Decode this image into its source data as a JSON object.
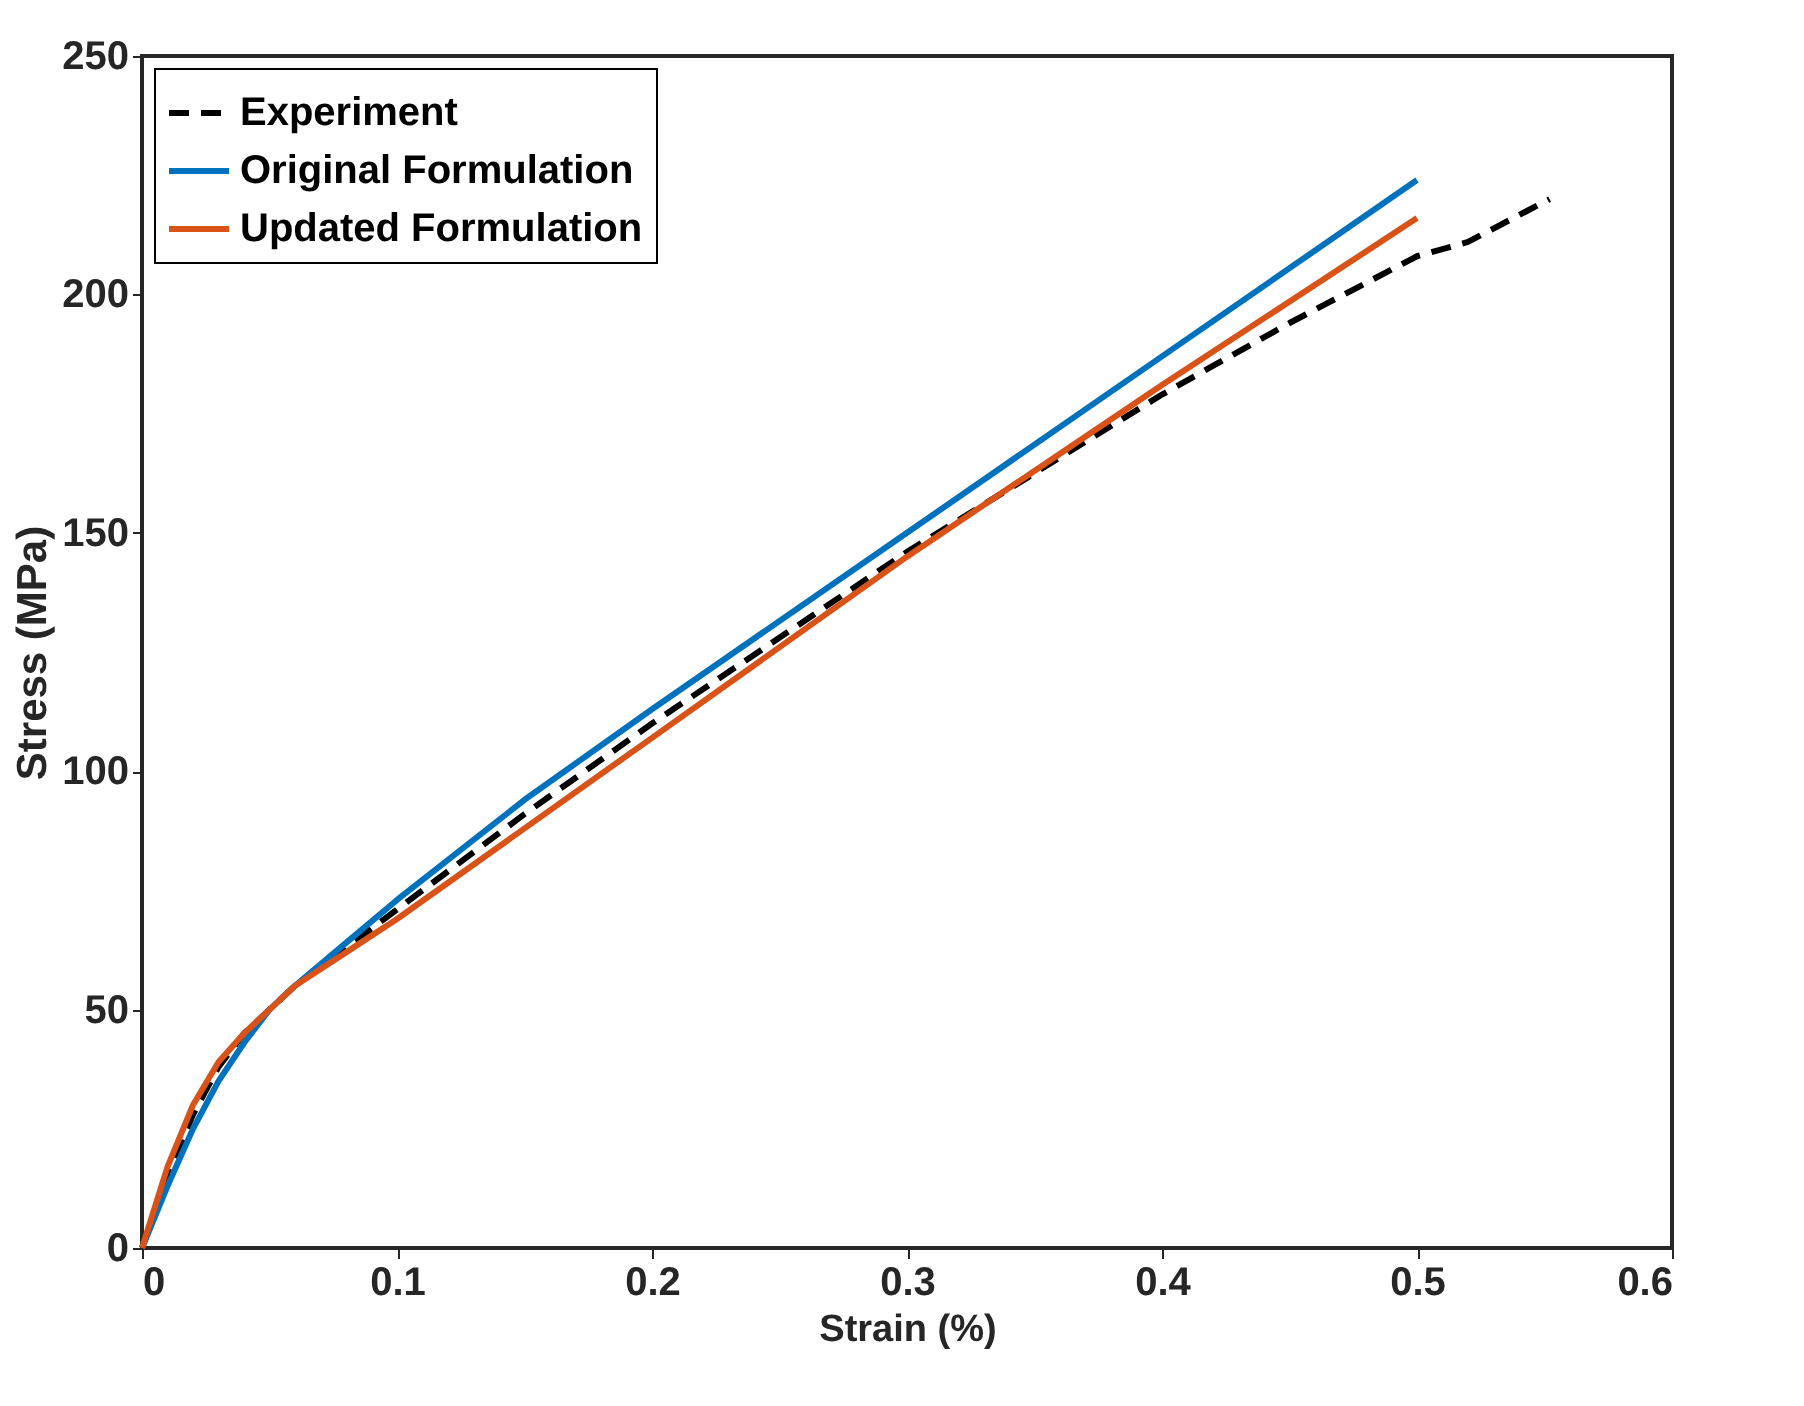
{
  "chart_data": {
    "type": "line",
    "xlabel": "Strain (%)",
    "ylabel": "Stress (MPa)",
    "xlim": [
      0,
      0.6
    ],
    "xticks": [
      0,
      0.1,
      0.2,
      0.3,
      0.4,
      0.5,
      0.6
    ],
    "ylim": [
      0,
      250
    ],
    "yticks": [
      0,
      50,
      100,
      150,
      200,
      250
    ],
    "grid": false,
    "legend": "top left",
    "series": [
      {
        "name": "Experiment",
        "color": "#000000",
        "line_style": "dashed",
        "x": [
          0,
          0.01,
          0.02,
          0.03,
          0.04,
          0.05,
          0.06,
          0.1,
          0.15,
          0.2,
          0.3,
          0.4,
          0.45,
          0.5,
          0.52,
          0.552
        ],
        "values": [
          0,
          15,
          28,
          38,
          45,
          50,
          55,
          71,
          91,
          110,
          146,
          179,
          194,
          208,
          211,
          220
        ]
      },
      {
        "name": "Original Formulation",
        "color": "#0072bd",
        "line_style": "solid",
        "x": [
          0,
          0.01,
          0.02,
          0.03,
          0.04,
          0.05,
          0.06,
          0.08,
          0.1,
          0.15,
          0.2,
          0.3,
          0.4,
          0.5
        ],
        "values": [
          0,
          13,
          25,
          35,
          43,
          50,
          55,
          64,
          73,
          94,
          113,
          150,
          187,
          224
        ]
      },
      {
        "name": "Updated Formulation",
        "color": "#d95319",
        "line_style": "solid",
        "x": [
          0,
          0.01,
          0.02,
          0.03,
          0.04,
          0.05,
          0.06,
          0.08,
          0.1,
          0.15,
          0.2,
          0.3,
          0.4,
          0.5
        ],
        "values": [
          0,
          17,
          30,
          39,
          45,
          50,
          55,
          62,
          69,
          88,
          107,
          145,
          181,
          216
        ]
      }
    ]
  }
}
